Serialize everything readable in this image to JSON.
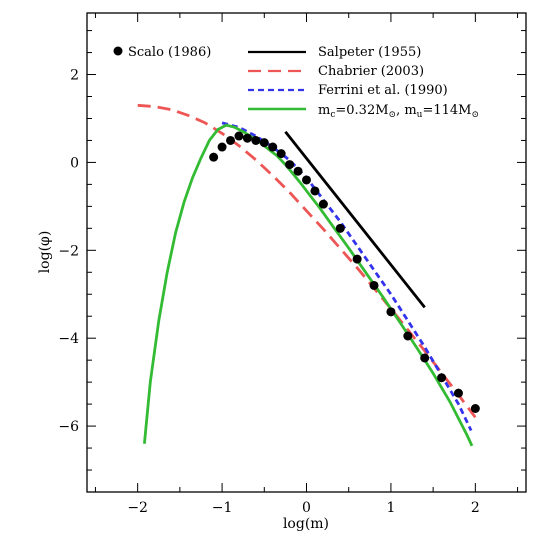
{
  "chart_data": {
    "type": "line",
    "xlabel": "log(m)",
    "ylabel": "log(φ)",
    "xlim": [
      -2.6,
      2.6
    ],
    "ylim": [
      -7.5,
      3.4
    ],
    "x_ticks": [
      -2,
      -1,
      0,
      1,
      2
    ],
    "x_tick_labels": [
      "−2",
      "−1",
      "0",
      "1",
      "2"
    ],
    "y_ticks": [
      -6,
      -4,
      -2,
      0,
      2
    ],
    "y_tick_labels": [
      "−6",
      "−4",
      "−2",
      "0",
      "2"
    ],
    "grid": false,
    "legend_position": "top",
    "series": [
      {
        "name": "Scalo (1986)",
        "style": "points",
        "color": "#000000",
        "x": [
          -1.1,
          -1.0,
          -0.9,
          -0.8,
          -0.7,
          -0.6,
          -0.5,
          -0.4,
          -0.3,
          -0.2,
          -0.1,
          0.0,
          0.1,
          0.2,
          0.4,
          0.6,
          0.8,
          1.0,
          1.2,
          1.4,
          1.6,
          1.8,
          2.0
        ],
        "y": [
          0.12,
          0.35,
          0.5,
          0.6,
          0.55,
          0.5,
          0.45,
          0.35,
          0.2,
          -0.05,
          -0.2,
          -0.4,
          -0.65,
          -0.95,
          -1.5,
          -2.2,
          -2.8,
          -3.4,
          -3.95,
          -4.45,
          -4.9,
          -5.25,
          -5.6
        ]
      },
      {
        "name": "Salpeter (1955)",
        "style": "solid",
        "color": "#000000",
        "x": [
          -0.25,
          1.4
        ],
        "y": [
          0.7,
          -3.3
        ]
      },
      {
        "name": "Chabrier (2003)",
        "style": "long-dash",
        "color": "#ee5555",
        "x": [
          -2.0,
          -1.8,
          -1.6,
          -1.4,
          -1.2,
          -1.0,
          -0.8,
          -0.6,
          -0.4,
          -0.2,
          0.0,
          0.2,
          0.4,
          0.6,
          0.8,
          1.0,
          1.2,
          1.4,
          1.6,
          1.8,
          2.0
        ],
        "y": [
          1.3,
          1.27,
          1.2,
          1.07,
          0.9,
          0.66,
          0.38,
          0.06,
          -0.3,
          -0.68,
          -1.1,
          -1.52,
          -1.96,
          -2.4,
          -2.86,
          -3.33,
          -3.81,
          -4.29,
          -4.79,
          -5.29,
          -5.8
        ]
      },
      {
        "name": "Ferrini et al. (1990)",
        "style": "short-dash",
        "color": "#3333ee",
        "x": [
          -1.0,
          -0.8,
          -0.6,
          -0.4,
          -0.2,
          0.0,
          0.2,
          0.4,
          0.6,
          0.8,
          1.0,
          1.2,
          1.4,
          1.6,
          1.8,
          1.95
        ],
        "y": [
          0.9,
          0.8,
          0.6,
          0.35,
          0.05,
          -0.35,
          -0.85,
          -1.35,
          -1.9,
          -2.45,
          -3.0,
          -3.6,
          -4.2,
          -4.85,
          -5.5,
          -6.1
        ]
      },
      {
        "name": "m_c=0.32M⊙, m_u=114M⊙",
        "style": "solid",
        "color": "#33bb33",
        "x": [
          -1.92,
          -1.85,
          -1.75,
          -1.65,
          -1.55,
          -1.45,
          -1.35,
          -1.25,
          -1.15,
          -1.05,
          -0.95,
          -0.85,
          -0.75,
          -0.65,
          -0.55,
          -0.45,
          -0.35,
          -0.25,
          -0.15,
          -0.05,
          0.05,
          0.15,
          0.3,
          0.5,
          0.7,
          0.9,
          1.1,
          1.3,
          1.5,
          1.7,
          1.9,
          1.96
        ],
        "y": [
          -6.4,
          -5.0,
          -3.6,
          -2.5,
          -1.6,
          -0.9,
          -0.35,
          0.1,
          0.5,
          0.75,
          0.85,
          0.8,
          0.7,
          0.58,
          0.45,
          0.3,
          0.15,
          -0.05,
          -0.28,
          -0.52,
          -0.77,
          -1.02,
          -1.42,
          -1.95,
          -2.5,
          -3.05,
          -3.62,
          -4.2,
          -4.8,
          -5.45,
          -6.2,
          -6.45
        ]
      }
    ],
    "legend": {
      "left_entry": "Scalo (1986)",
      "right_entries": [
        {
          "label": "Salpeter (1955)",
          "color": "#000000",
          "style": "solid"
        },
        {
          "label": "Chabrier (2003)",
          "color": "#ee5555",
          "style": "long-dash"
        },
        {
          "label": "Ferrini et al. (1990)",
          "color": "#3333ee",
          "style": "short-dash"
        }
      ],
      "last_entry": {
        "color": "#33bb33",
        "style": "solid",
        "mc_text": "=0.32M",
        "mu_text": "=114M",
        "sun_symbol": "⊙"
      }
    }
  }
}
